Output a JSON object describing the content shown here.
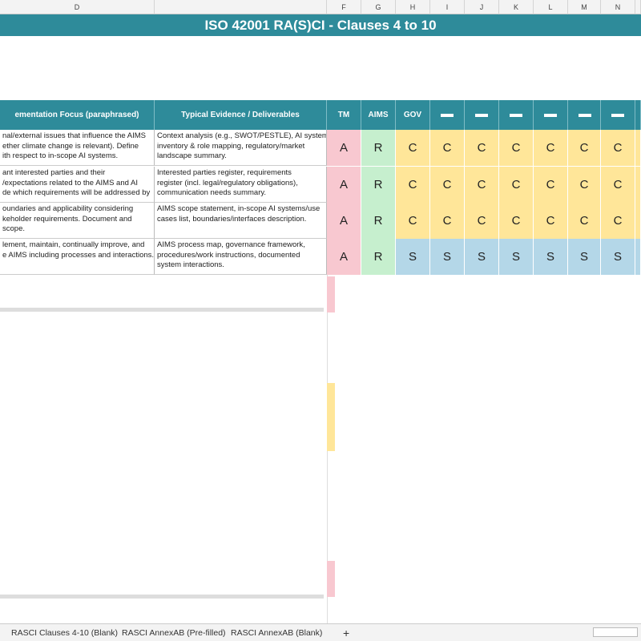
{
  "column_letters": [
    "D",
    "F",
    "G",
    "H",
    "I",
    "J",
    "K",
    "L",
    "M",
    "N"
  ],
  "title": "ISO 42001 RA(S)CI - Clauses 4 to 10",
  "headers": {
    "focus": "ementation Focus (paraphrased)",
    "evidence": "Typical Evidence / Deliverables",
    "roles": [
      "TM",
      "AIMS",
      "GOV"
    ]
  },
  "rows": [
    {
      "focus": [
        "nal/external issues that influence the AIMS",
        "ether climate change is relevant). Define",
        "ith respect to in-scope AI systems."
      ],
      "evidence": [
        "Context analysis (e.g., SWOT/PESTLE), AI system",
        "inventory & role mapping, regulatory/market",
        "landscape summary."
      ],
      "raci": [
        "A",
        "R",
        "C",
        "C",
        "C",
        "C",
        "C",
        "C",
        "C"
      ]
    },
    {
      "focus": [
        "ant interested parties and their",
        "/expectations related to the AIMS and AI",
        "de which requirements will be addressed by"
      ],
      "evidence": [
        "Interested parties register, requirements",
        "register (incl. legal/regulatory obligations),",
        "communication needs summary."
      ],
      "raci": [
        "A",
        "R",
        "C",
        "C",
        "C",
        "C",
        "C",
        "C",
        "C"
      ]
    },
    {
      "focus": [
        "oundaries and applicability considering",
        "keholder requirements. Document and",
        "scope."
      ],
      "evidence": [
        "AIMS scope statement, in-scope AI systems/use",
        "cases list, boundaries/interfaces description."
      ],
      "raci": [
        "A",
        "R",
        "C",
        "C",
        "C",
        "C",
        "C",
        "C",
        "C"
      ]
    },
    {
      "focus": [
        "lement, maintain, continually improve, and",
        "e AIMS including processes and interactions."
      ],
      "evidence": [
        "AIMS process map, governance framework,",
        "procedures/work instructions, documented",
        "system interactions."
      ],
      "raci": [
        "A",
        "R",
        "S",
        "S",
        "S",
        "S",
        "S",
        "S",
        "S"
      ]
    }
  ],
  "tabs": [
    "RASCI Clauses 4-10 (Blank)",
    "RASCI AnnexAB (Pre-filled)",
    "RASCI AnnexAB (Blank)"
  ],
  "add_tab": "+"
}
